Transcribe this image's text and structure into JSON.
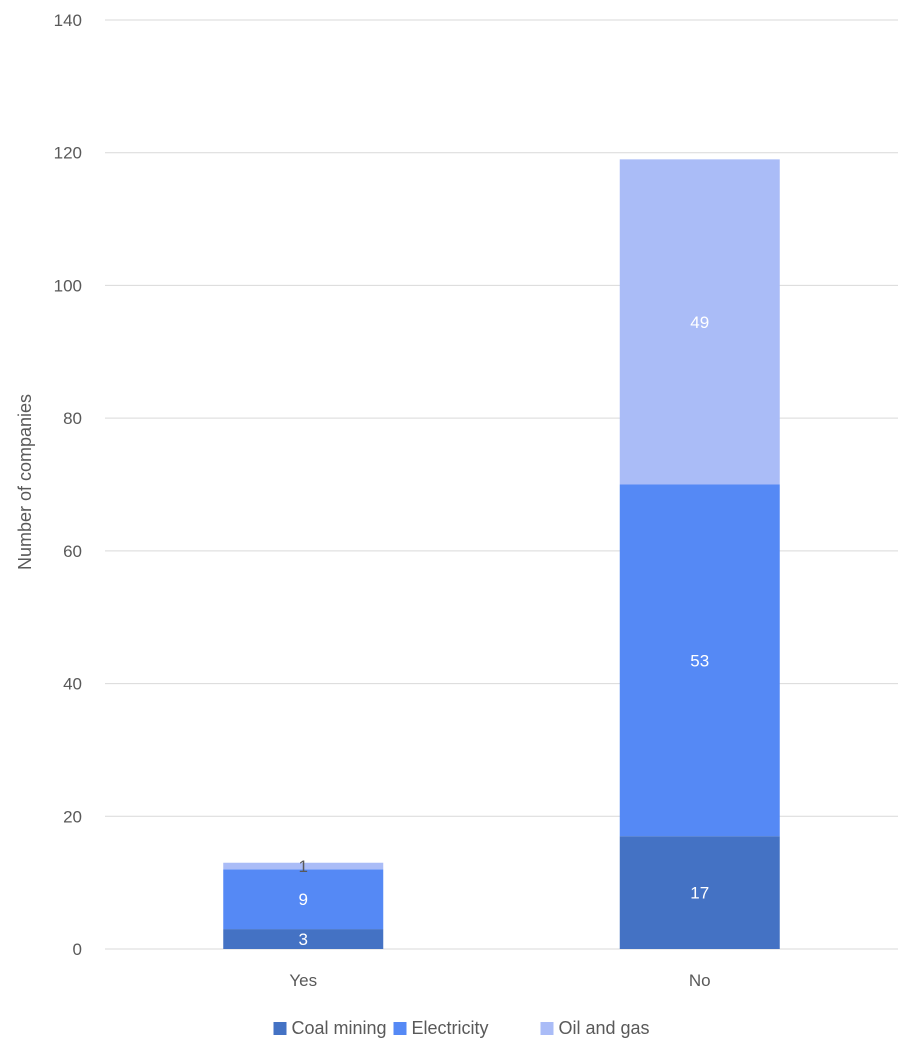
{
  "chart_data": {
    "type": "bar",
    "stacked": true,
    "categories": [
      "Yes",
      "No"
    ],
    "series": [
      {
        "name": "Coal mining",
        "values": [
          3,
          17
        ],
        "color": "#4472C4"
      },
      {
        "name": "Electricity",
        "values": [
          9,
          53
        ],
        "color": "#5589F5"
      },
      {
        "name": "Oil and gas",
        "values": [
          1,
          49
        ],
        "color": "#AABCF7"
      }
    ],
    "title": "",
    "xlabel": "",
    "ylabel": "Number of companies",
    "ylim": [
      0,
      140
    ],
    "yticks": [
      0,
      20,
      40,
      60,
      80,
      100,
      120,
      140
    ],
    "grid": true,
    "legend_position": "bottom",
    "data_label_colors": {
      "dark": "#595959",
      "light": "#ffffff"
    },
    "axis_text_color": "#595959",
    "gridline_color": "#D9D9D9"
  }
}
